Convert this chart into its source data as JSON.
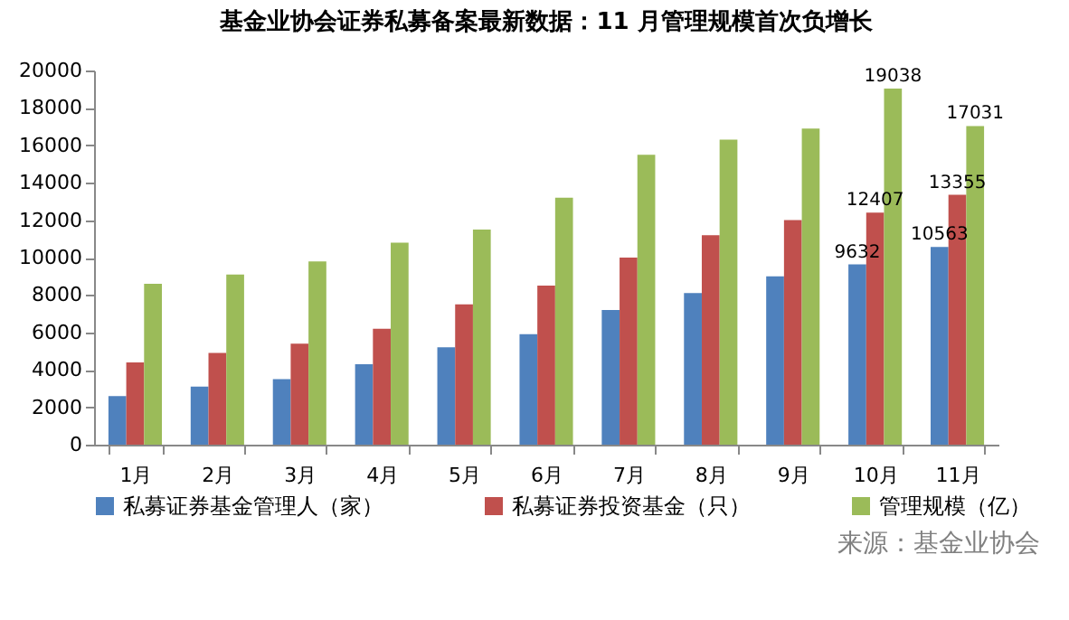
{
  "chart_data": {
    "type": "bar",
    "title": "基金业协会证券私募备案最新数据：11 月管理规模首次负增长",
    "categories": [
      "1月",
      "2月",
      "3月",
      "4月",
      "5月",
      "6月",
      "7月",
      "8月",
      "9月",
      "10月",
      "11月"
    ],
    "series": [
      {
        "name": "私募证券基金管理人（家）",
        "color": "#4f81bd",
        "values": [
          2600,
          3100,
          3500,
          4300,
          5200,
          5900,
          7200,
          8100,
          9000,
          9632,
          10563
        ],
        "value_labels": [
          null,
          null,
          null,
          null,
          null,
          null,
          null,
          null,
          null,
          "9632",
          "10563"
        ]
      },
      {
        "name": "私募证券投资基金（只）",
        "color": "#c0504d",
        "values": [
          4400,
          4900,
          5400,
          6200,
          7500,
          8500,
          10000,
          11200,
          12000,
          12407,
          13355
        ],
        "value_labels": [
          null,
          null,
          null,
          null,
          null,
          null,
          null,
          null,
          null,
          "12407",
          "13355"
        ]
      },
      {
        "name": "管理规模（亿）",
        "color": "#9bbb59",
        "values": [
          8600,
          9100,
          9800,
          10800,
          11500,
          13200,
          15500,
          16300,
          16900,
          19038,
          17031
        ],
        "value_labels": [
          null,
          null,
          null,
          null,
          null,
          null,
          null,
          null,
          null,
          "19038",
          "17031"
        ]
      }
    ],
    "ylim": [
      0,
      20000
    ],
    "yticks": [
      0,
      2000,
      4000,
      6000,
      8000,
      10000,
      12000,
      14000,
      16000,
      18000,
      20000
    ],
    "grid": false,
    "legend": "bottom",
    "annotations": [
      "来源：基金业协会"
    ]
  }
}
